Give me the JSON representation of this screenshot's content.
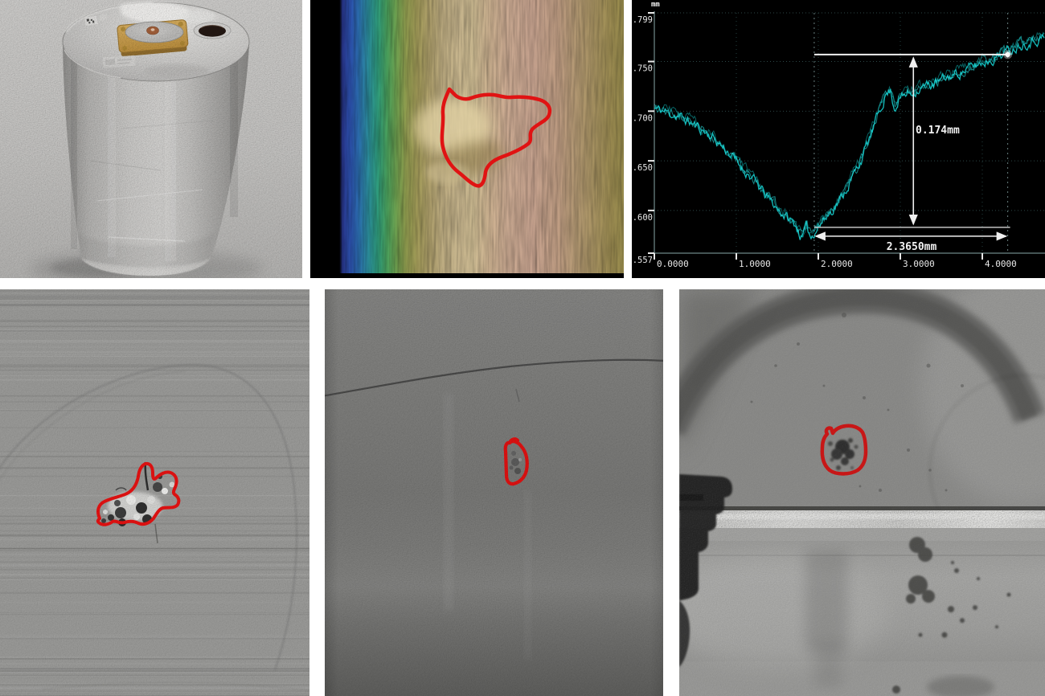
{
  "figure": {
    "gutter_color": "#ffffff",
    "annotation_color": "#dd1414",
    "panels": [
      {
        "name": "canister-photo",
        "row": 1,
        "col": 1,
        "content": "metal canister with fixture on lid"
      },
      {
        "name": "surface-height-map",
        "row": 1,
        "col": 2,
        "content": "color height map with defect outlined in red"
      },
      {
        "name": "depth-profile-chart",
        "row": 1,
        "col": 3,
        "content": "surface depth profile with measurements"
      },
      {
        "name": "grayscale-defect-image-1",
        "row": 2,
        "col": 1,
        "content": "grayscale NDT image, defect outlined in red"
      },
      {
        "name": "grayscale-defect-image-2",
        "row": 2,
        "col": 2,
        "content": "grayscale NDT image, small defect outlined in red"
      },
      {
        "name": "grayscale-defect-image-3",
        "row": 2,
        "col": 3,
        "content": "grayscale internal view, pit outlined in red"
      }
    ]
  },
  "chart_data": {
    "type": "line",
    "title": "",
    "xlabel": "",
    "ylabel": "",
    "unit_label": "mm",
    "background": "#000000",
    "line_color": "#1bd2d2",
    "grid": true,
    "x_tick_labels": [
      "0.0000",
      "1.0000",
      "2.0000",
      "3.0000",
      "4.0000"
    ],
    "x_tick_values": [
      0,
      1,
      2,
      3,
      4
    ],
    "y_tick_labels": [
      "3.799",
      "3.750",
      "3.700",
      "3.650",
      "3.600",
      "3.557"
    ],
    "y_tick_values": [
      3.799,
      3.75,
      3.7,
      3.65,
      3.6,
      3.557
    ],
    "x_range": [
      0,
      4.78
    ],
    "y_range": [
      3.557,
      3.799
    ],
    "series": [
      {
        "name": "surface-profile",
        "points": [
          [
            0.0,
            3.704
          ],
          [
            0.12,
            3.701
          ],
          [
            0.3,
            3.696
          ],
          [
            0.5,
            3.687
          ],
          [
            0.7,
            3.676
          ],
          [
            0.9,
            3.66
          ],
          [
            1.05,
            3.646
          ],
          [
            1.2,
            3.633
          ],
          [
            1.35,
            3.617
          ],
          [
            1.5,
            3.603
          ],
          [
            1.62,
            3.594
          ],
          [
            1.72,
            3.587
          ],
          [
            1.8,
            3.573
          ],
          [
            1.86,
            3.585
          ],
          [
            1.91,
            3.574
          ],
          [
            1.97,
            3.583
          ],
          [
            2.05,
            3.59
          ],
          [
            2.15,
            3.6
          ],
          [
            2.28,
            3.614
          ],
          [
            2.4,
            3.632
          ],
          [
            2.52,
            3.652
          ],
          [
            2.64,
            3.677
          ],
          [
            2.74,
            3.7
          ],
          [
            2.82,
            3.718
          ],
          [
            2.88,
            3.722
          ],
          [
            2.93,
            3.704
          ],
          [
            2.98,
            3.713
          ],
          [
            3.05,
            3.717
          ],
          [
            3.15,
            3.721
          ],
          [
            3.3,
            3.726
          ],
          [
            3.45,
            3.73
          ],
          [
            3.6,
            3.736
          ],
          [
            3.8,
            3.743
          ],
          [
            4.0,
            3.75
          ],
          [
            4.15,
            3.755
          ],
          [
            4.31,
            3.762
          ],
          [
            4.45,
            3.768
          ],
          [
            4.6,
            3.772
          ],
          [
            4.78,
            3.776
          ]
        ]
      }
    ],
    "annotations": {
      "depth_label": "0.174mm",
      "width_label": "2.3650mm",
      "depth_top_mm": 3.757,
      "depth_bottom_mm": 3.583,
      "width_left_mm": 1.95,
      "width_right_mm": 4.31
    }
  }
}
